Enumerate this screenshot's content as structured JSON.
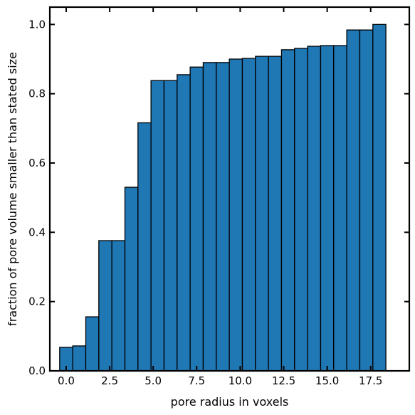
{
  "chart_data": {
    "type": "bar",
    "xlabel": "pore radius in voxels",
    "ylabel": "fraction of pore volume smaller than stated size",
    "xlim": [
      -0.94,
      19.72
    ],
    "ylim": [
      0.0,
      1.05
    ],
    "bin_width": 0.75,
    "x": [
      0.0,
      0.75,
      1.5,
      2.25,
      3.0,
      3.75,
      4.5,
      5.25,
      6.0,
      6.75,
      7.5,
      8.25,
      9.0,
      9.75,
      10.5,
      11.25,
      12.0,
      12.75,
      13.5,
      14.25,
      15.0,
      15.75,
      16.5,
      17.25,
      18.0
    ],
    "values": [
      0.068,
      0.072,
      0.156,
      0.376,
      0.376,
      0.53,
      0.716,
      0.838,
      0.838,
      0.855,
      0.877,
      0.89,
      0.89,
      0.9,
      0.902,
      0.908,
      0.908,
      0.927,
      0.931,
      0.937,
      0.939,
      0.939,
      0.984,
      0.984,
      1.0
    ],
    "x_ticks": [
      0.0,
      2.5,
      5.0,
      7.5,
      10.0,
      12.5,
      15.0,
      17.5
    ],
    "x_tick_labels": [
      "0.0",
      "2.5",
      "5.0",
      "7.5",
      "10.0",
      "12.5",
      "15.0",
      "17.5"
    ],
    "y_ticks": [
      0.0,
      0.2,
      0.4,
      0.6,
      0.8,
      1.0
    ],
    "y_tick_labels": [
      "0.0",
      "0.2",
      "0.4",
      "0.6",
      "0.8",
      "1.0"
    ],
    "grid": false,
    "colors": {
      "bar_fill": "#1f77b4",
      "bar_edge": "#000000",
      "axis": "#000000"
    }
  }
}
